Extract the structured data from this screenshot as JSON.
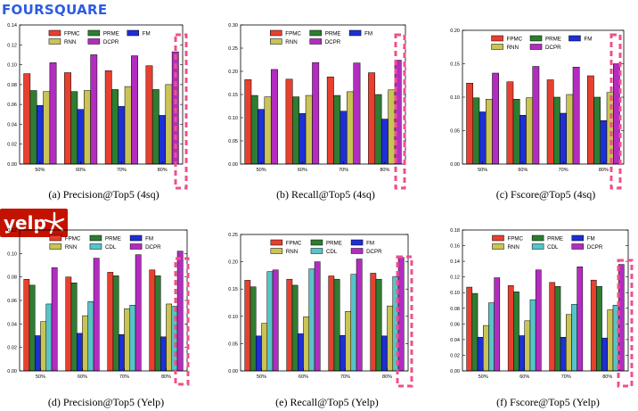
{
  "logos": {
    "foursquare": "FOURSQUARE",
    "yelp": "yelp"
  },
  "colors": {
    "FPMC": "#e8402f",
    "PRME": "#2e7d32",
    "FM": "#1d2fd6",
    "CDL": "#56c4c9",
    "RNN": "#c9c455",
    "DCPR": "#b32cc0",
    "highlight": "#f0508a"
  },
  "chart_data": [
    {
      "type": "bar",
      "title": "(a) Precision@Top5 (4sq)",
      "categories": [
        "50%",
        "60%",
        "70%",
        "80%"
      ],
      "ylim": [
        0,
        0.14
      ],
      "yticks": [
        "0.00",
        "0.02",
        "0.04",
        "0.06",
        "0.08",
        "0.10",
        "0.12",
        "0.14"
      ],
      "legend": "top",
      "grid": false,
      "series": [
        {
          "name": "FPMC",
          "values": [
            0.091,
            0.092,
            0.094,
            0.099
          ]
        },
        {
          "name": "PRME",
          "values": [
            0.074,
            0.073,
            0.075,
            0.075
          ]
        },
        {
          "name": "FM",
          "values": [
            0.059,
            0.055,
            0.058,
            0.049
          ]
        },
        {
          "name": "RNN",
          "values": [
            0.073,
            0.074,
            0.078,
            0.08
          ]
        },
        {
          "name": "DCPR",
          "values": [
            0.102,
            0.11,
            0.109,
            0.113
          ]
        }
      ]
    },
    {
      "type": "bar",
      "title": "(b) Recall@Top5 (4sq)",
      "categories": [
        "50%",
        "60%",
        "70%",
        "80%"
      ],
      "ylim": [
        0,
        0.3
      ],
      "yticks": [
        "0.00",
        "0.05",
        "0.10",
        "0.15",
        "0.20",
        "0.25",
        "0.30"
      ],
      "legend": "top",
      "grid": false,
      "series": [
        {
          "name": "FPMC",
          "values": [
            0.182,
            0.183,
            0.188,
            0.197
          ]
        },
        {
          "name": "PRME",
          "values": [
            0.148,
            0.145,
            0.148,
            0.15
          ]
        },
        {
          "name": "FM",
          "values": [
            0.118,
            0.109,
            0.114,
            0.097
          ]
        },
        {
          "name": "RNN",
          "values": [
            0.145,
            0.148,
            0.156,
            0.16
          ]
        },
        {
          "name": "DCPR",
          "values": [
            0.204,
            0.219,
            0.218,
            0.224
          ]
        }
      ]
    },
    {
      "type": "bar",
      "title": "(c) Fscore@Top5 (4sq)",
      "categories": [
        "50%",
        "60%",
        "70%",
        "80%"
      ],
      "ylim": [
        0,
        0.2
      ],
      "yticks": [
        "0.00",
        "0.05",
        "0.10",
        "0.15",
        "0.20"
      ],
      "legend": "top",
      "grid": false,
      "series": [
        {
          "name": "FPMC",
          "values": [
            0.121,
            0.123,
            0.126,
            0.132
          ]
        },
        {
          "name": "PRME",
          "values": [
            0.099,
            0.097,
            0.1,
            0.1
          ]
        },
        {
          "name": "FM",
          "values": [
            0.078,
            0.073,
            0.076,
            0.065
          ]
        },
        {
          "name": "RNN",
          "values": [
            0.097,
            0.099,
            0.104,
            0.107
          ]
        },
        {
          "name": "DCPR",
          "values": [
            0.136,
            0.146,
            0.145,
            0.15
          ]
        }
      ]
    },
    {
      "type": "bar",
      "title": "(d) Precision@Top5 (Yelp)",
      "categories": [
        "50%",
        "60%",
        "70%",
        "80%"
      ],
      "ylim": [
        0,
        0.12
      ],
      "yticks": [
        "0.00",
        "0.02",
        "0.04",
        "0.06",
        "0.08",
        "0.10",
        "0.12"
      ],
      "legend": "top",
      "grid": false,
      "series": [
        {
          "name": "FPMC",
          "values": [
            0.078,
            0.08,
            0.084,
            0.086
          ]
        },
        {
          "name": "PRME",
          "values": [
            0.073,
            0.075,
            0.081,
            0.081
          ]
        },
        {
          "name": "FM",
          "values": [
            0.03,
            0.032,
            0.031,
            0.029
          ]
        },
        {
          "name": "RNN",
          "values": [
            0.042,
            0.047,
            0.053,
            0.057
          ]
        },
        {
          "name": "CDL",
          "values": [
            0.057,
            0.059,
            0.056,
            0.055
          ]
        },
        {
          "name": "DCPR",
          "values": [
            0.088,
            0.096,
            0.099,
            0.102
          ]
        }
      ]
    },
    {
      "type": "bar",
      "title": "(e) Recall@Top5 (Yelp)",
      "categories": [
        "50%",
        "60%",
        "70%",
        "80%"
      ],
      "ylim": [
        0,
        0.25
      ],
      "yticks": [
        "0.00",
        "0.05",
        "0.10",
        "0.15",
        "0.20",
        "0.25"
      ],
      "legend": "top",
      "grid": false,
      "series": [
        {
          "name": "FPMC",
          "values": [
            0.166,
            0.168,
            0.174,
            0.179
          ]
        },
        {
          "name": "PRME",
          "values": [
            0.154,
            0.157,
            0.168,
            0.168
          ]
        },
        {
          "name": "FM",
          "values": [
            0.064,
            0.068,
            0.065,
            0.064
          ]
        },
        {
          "name": "RNN",
          "values": [
            0.087,
            0.099,
            0.109,
            0.119
          ]
        },
        {
          "name": "CDL",
          "values": [
            0.182,
            0.187,
            0.177,
            0.173
          ]
        },
        {
          "name": "DCPR",
          "values": [
            0.185,
            0.2,
            0.205,
            0.208
          ]
        }
      ]
    },
    {
      "type": "bar",
      "title": "(f) Fscore@Top5 (Yelp)",
      "categories": [
        "50%",
        "60%",
        "70%",
        "80%"
      ],
      "ylim": [
        0,
        0.18
      ],
      "yticks": [
        "0.00",
        "0.02",
        "0.04",
        "0.06",
        "0.08",
        "0.10",
        "0.12",
        "0.14",
        "0.16",
        "0.18"
      ],
      "legend": "top",
      "grid": false,
      "series": [
        {
          "name": "FPMC",
          "values": [
            0.107,
            0.109,
            0.113,
            0.116
          ]
        },
        {
          "name": "PRME",
          "values": [
            0.099,
            0.101,
            0.108,
            0.108
          ]
        },
        {
          "name": "FM",
          "values": [
            0.043,
            0.045,
            0.043,
            0.042
          ]
        },
        {
          "name": "RNN",
          "values": [
            0.058,
            0.064,
            0.072,
            0.078
          ]
        },
        {
          "name": "CDL",
          "values": [
            0.087,
            0.091,
            0.085,
            0.084
          ]
        },
        {
          "name": "DCPR",
          "values": [
            0.119,
            0.129,
            0.133,
            0.136
          ]
        }
      ]
    }
  ]
}
